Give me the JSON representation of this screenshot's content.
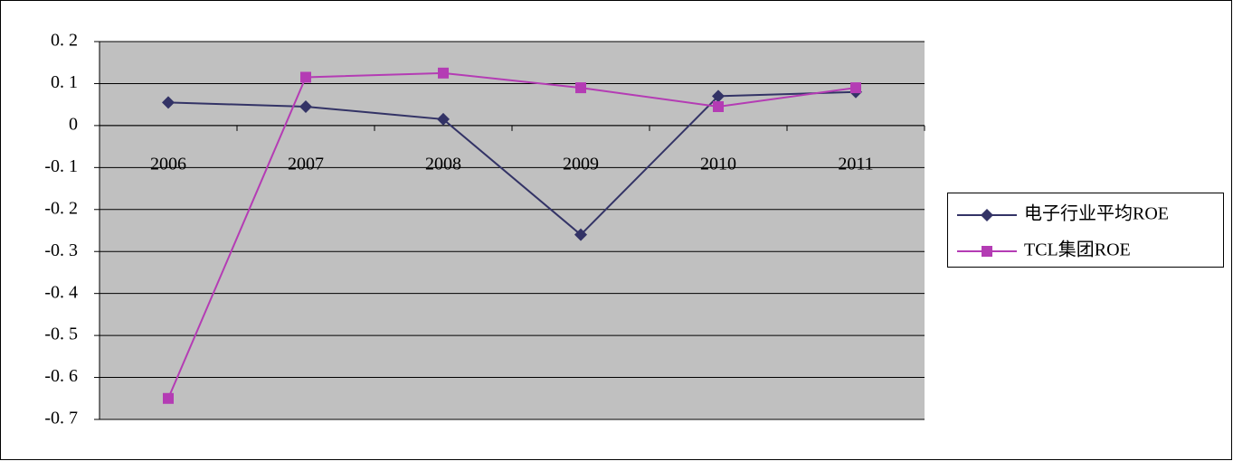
{
  "chart_data": {
    "type": "line",
    "categories": [
      "2006",
      "2007",
      "2008",
      "2009",
      "2010",
      "2011"
    ],
    "series": [
      {
        "name": "电子行业平均ROE",
        "color": "#333366",
        "marker": "diamond",
        "values": [
          0.055,
          0.045,
          0.015,
          -0.26,
          0.07,
          0.08
        ]
      },
      {
        "name": "TCL集团ROE",
        "color": "#b43cb4",
        "marker": "square",
        "values": [
          -0.65,
          0.115,
          0.125,
          0.09,
          0.045,
          0.09
        ]
      }
    ],
    "ylim": [
      -0.7,
      0.2
    ],
    "yticks": [
      {
        "value": 0.2,
        "label": "0. 2"
      },
      {
        "value": 0.1,
        "label": "0. 1"
      },
      0,
      {
        "value": -0.1,
        "label": "-0. 1"
      },
      {
        "value": -0.2,
        "label": "-0. 2"
      },
      {
        "value": -0.3,
        "label": "-0. 3"
      },
      {
        "value": -0.4,
        "label": "-0. 4"
      },
      {
        "value": -0.5,
        "label": "-0. 5"
      },
      {
        "value": -0.6,
        "label": "-0. 6"
      },
      {
        "value": -0.7,
        "label": "-0. 7"
      }
    ],
    "grid": true,
    "plot_background": "#c0c0c0",
    "legend": "right"
  }
}
